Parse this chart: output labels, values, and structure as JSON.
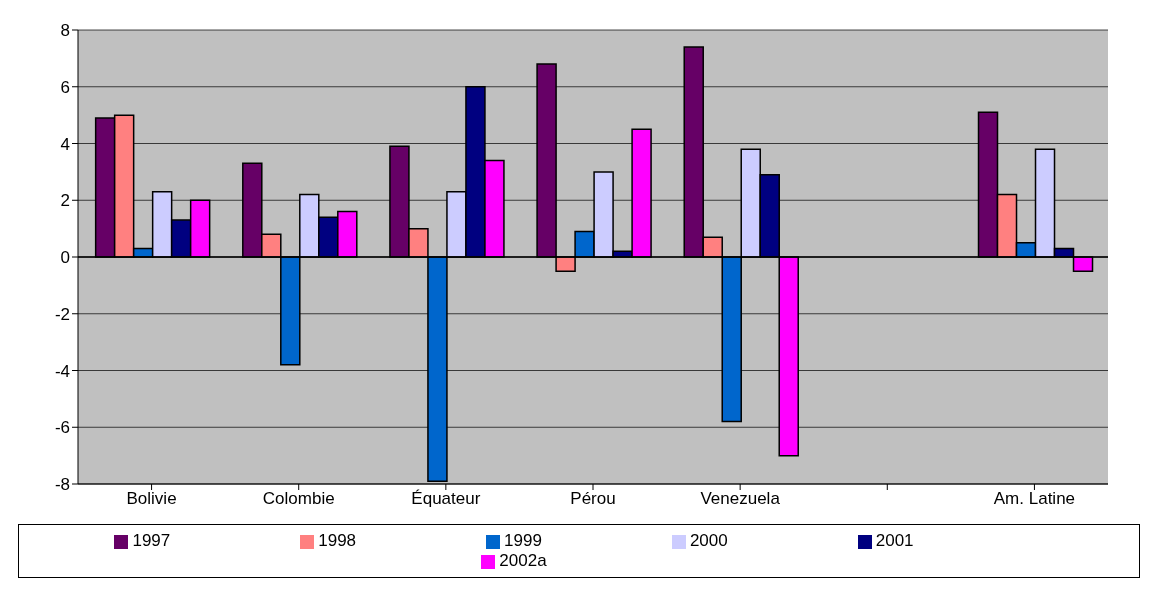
{
  "chart_data": {
    "type": "bar",
    "categories": [
      "Bolivie",
      "Colombie",
      "Équateur",
      "Pérou",
      "Venezuela",
      null,
      "Am. Latine"
    ],
    "series": [
      {
        "name": "1997",
        "color": "#660066",
        "values": [
          4.9,
          3.3,
          3.9,
          6.8,
          7.4,
          null,
          5.1
        ]
      },
      {
        "name": "1998",
        "color": "#ff8080",
        "values": [
          5.0,
          0.8,
          1.0,
          -0.5,
          0.7,
          null,
          2.2
        ]
      },
      {
        "name": "1999",
        "color": "#0066cc",
        "values": [
          0.3,
          -3.8,
          -7.9,
          0.9,
          -5.8,
          null,
          0.5
        ]
      },
      {
        "name": "2000",
        "color": "#ccccff",
        "values": [
          2.3,
          2.2,
          2.3,
          3.0,
          3.8,
          null,
          3.8
        ]
      },
      {
        "name": "2001",
        "color": "#000080",
        "values": [
          1.3,
          1.4,
          6.0,
          0.2,
          2.9,
          null,
          0.3
        ]
      },
      {
        "name": "2002a",
        "color": "#ff00ff",
        "values": [
          2.0,
          1.6,
          3.4,
          4.5,
          -7.0,
          null,
          -0.5
        ]
      }
    ],
    "ylim": [
      -8,
      8
    ],
    "yticks": [
      -8,
      -6,
      -4,
      -2,
      0,
      2,
      4,
      6,
      8
    ],
    "grid": "y",
    "legend": "bottom"
  }
}
